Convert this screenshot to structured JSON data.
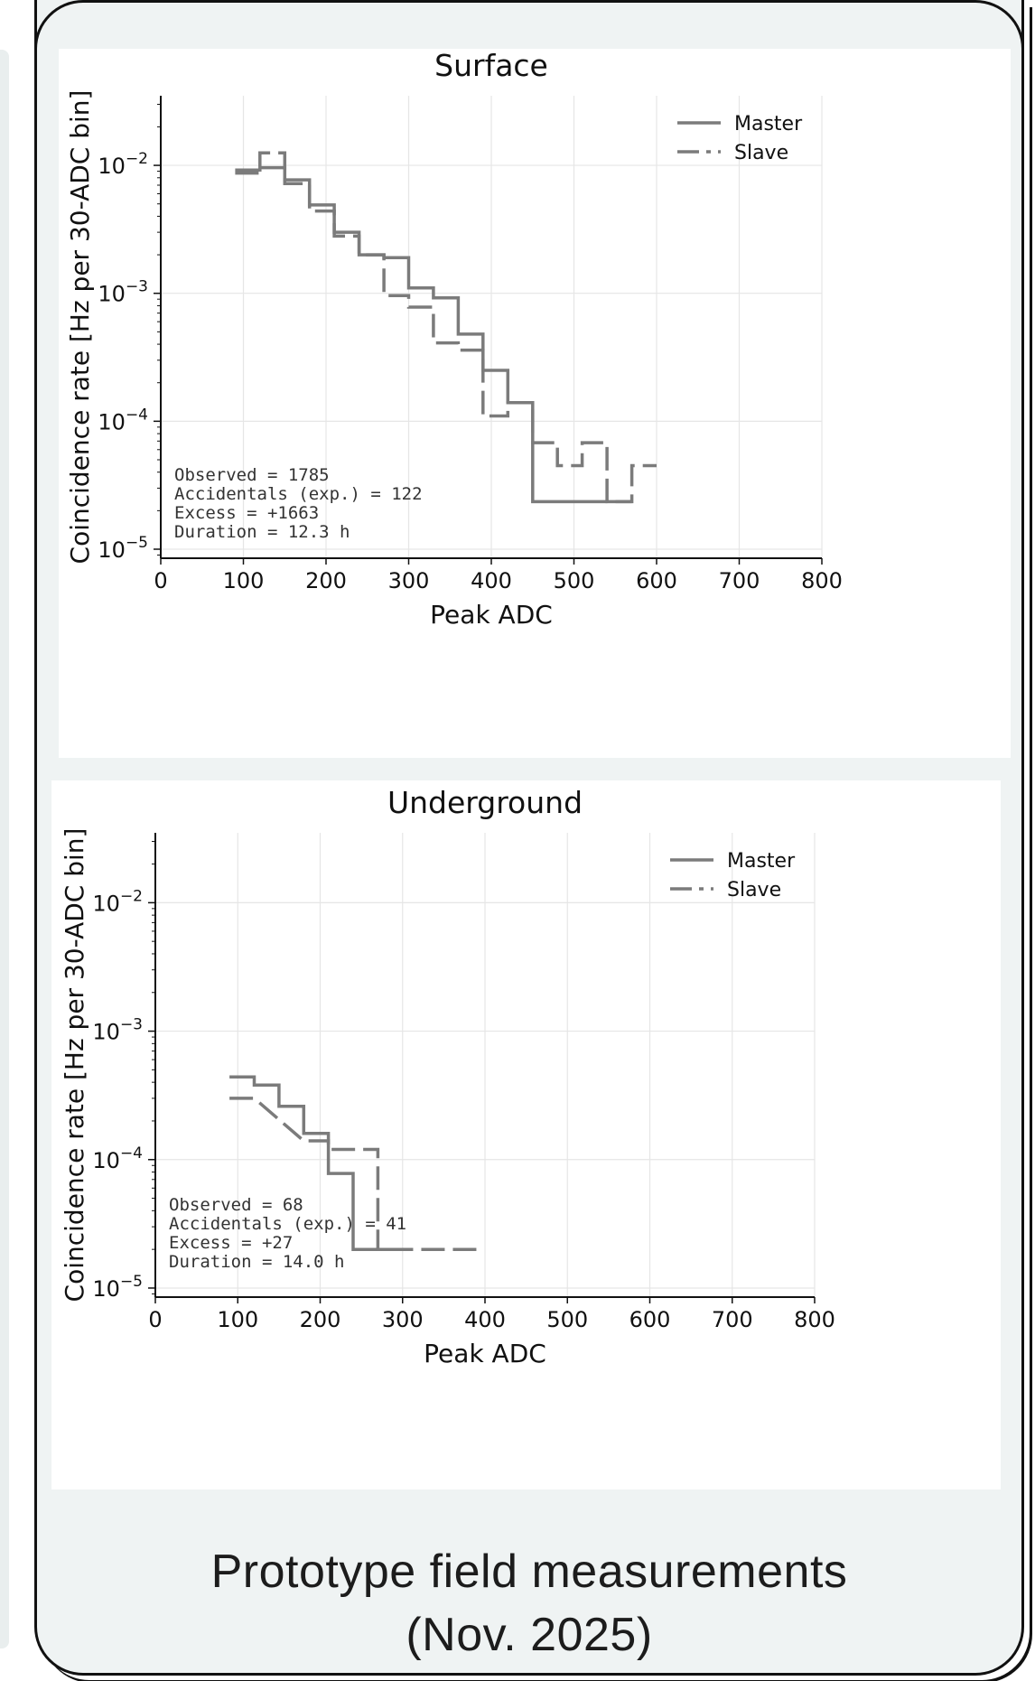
{
  "chart_data": [
    {
      "type": "line",
      "title": "Surface",
      "xlabel": "Peak ADC",
      "ylabel": "Coincidence rate [Hz per 30-ADC bin]",
      "xlim": [
        0,
        800
      ],
      "ylim": [
        8.5e-06,
        0.035
      ],
      "yscale": "log",
      "grid": true,
      "legend_position": "top-right",
      "xticks": [
        "0",
        "100",
        "200",
        "300",
        "400",
        "500",
        "600",
        "700",
        "800"
      ],
      "yticks": [
        {
          "value": 0.01,
          "base": "10",
          "exp": "−2"
        },
        {
          "value": 0.001,
          "base": "10",
          "exp": "−3"
        },
        {
          "value": 0.0001,
          "base": "10",
          "exp": "−4"
        },
        {
          "value": 1e-05,
          "base": "10",
          "exp": "−5"
        }
      ],
      "series": [
        {
          "name": "Master",
          "style": "solid",
          "color": "#7b7b7b",
          "bins": [
            [
              90,
              0.0092
            ],
            [
              120,
              0.0096
            ],
            [
              150,
              0.0077
            ],
            [
              180,
              0.0049
            ],
            [
              210,
              0.003
            ],
            [
              240,
              0.002
            ],
            [
              270,
              0.0019
            ],
            [
              300,
              0.0011
            ],
            [
              330,
              0.00092
            ],
            [
              360,
              0.00048
            ],
            [
              390,
              0.00025
            ],
            [
              420,
              0.00014
            ],
            [
              450,
              2.35e-05
            ],
            [
              480,
              2.35e-05
            ],
            [
              510,
              2.35e-05
            ],
            [
              540,
              2.35e-05
            ]
          ]
        },
        {
          "name": "Slave",
          "style": "dashed",
          "color": "#7b7b7b",
          "bins": [
            [
              90,
              0.0087
            ],
            [
              120,
              0.0125
            ],
            [
              150,
              0.0072
            ],
            [
              180,
              0.0044
            ],
            [
              210,
              0.0028
            ],
            [
              240,
              0.002
            ],
            [
              270,
              0.00096
            ],
            [
              300,
              0.00078
            ],
            [
              330,
              0.00041
            ],
            [
              360,
              0.00036
            ],
            [
              390,
              0.00011
            ],
            [
              420,
              0.00014
            ],
            [
              450,
              6.8e-05
            ],
            [
              480,
              4.5e-05
            ],
            [
              510,
              6.8e-05
            ],
            [
              540,
              2.35e-05
            ],
            [
              570,
              4.5e-05
            ]
          ]
        }
      ],
      "annotation_lines": [
        "Observed = 1785",
        "Accidentals (exp.) = 122",
        "Excess = +1663",
        "Duration = 12.3 h"
      ]
    },
    {
      "type": "line",
      "title": "Underground",
      "xlabel": "Peak ADC",
      "ylabel": "Coincidence rate [Hz per 30-ADC bin]",
      "xlim": [
        0,
        800
      ],
      "ylim": [
        8.5e-06,
        0.035
      ],
      "yscale": "log",
      "grid": true,
      "legend_position": "top-right",
      "xticks": [
        "0",
        "100",
        "200",
        "300",
        "400",
        "500",
        "600",
        "700",
        "800"
      ],
      "yticks": [
        {
          "value": 0.01,
          "base": "10",
          "exp": "−2"
        },
        {
          "value": 0.001,
          "base": "10",
          "exp": "−3"
        },
        {
          "value": 0.0001,
          "base": "10",
          "exp": "−4"
        },
        {
          "value": 1e-05,
          "base": "10",
          "exp": "−5"
        }
      ],
      "series": [
        {
          "name": "Master",
          "style": "solid",
          "color": "#7b7b7b",
          "bins": [
            [
              90,
              0.00044
            ],
            [
              120,
              0.00038
            ],
            [
              150,
              0.00026
            ],
            [
              180,
              0.00016
            ],
            [
              210,
              7.8e-05
            ],
            [
              240,
              2e-05
            ],
            [
              270,
              2e-05
            ]
          ]
        },
        {
          "name": "Slave",
          "style": "dashed",
          "color": "#7b7b7b",
          "bins": [
            [
              90,
              0.0003
            ],
            [
              180,
              0.00014
            ],
            [
              210,
              0.00012
            ],
            [
              240,
              0.00012
            ],
            [
              270,
              2e-05
            ],
            [
              300,
              2e-05
            ],
            [
              360,
              2e-05
            ]
          ]
        }
      ],
      "annotation_lines": [
        "Observed = 68",
        "Accidentals (exp.) = 41",
        "Excess = +27",
        "Duration = 14.0 h"
      ]
    }
  ],
  "caption": {
    "line1": "Prototype field measurements",
    "line2": "(Nov. 2025)"
  }
}
